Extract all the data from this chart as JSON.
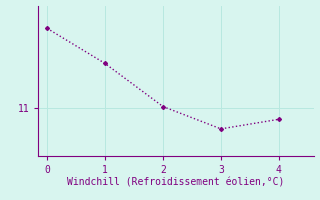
{
  "x": [
    0,
    1,
    2,
    3,
    4
  ],
  "y": [
    13.5,
    12.4,
    11.05,
    10.35,
    10.65
  ],
  "line_color": "#800080",
  "marker": "D",
  "marker_size": 2,
  "linestyle": "dotted",
  "background_color": "#d8f5ef",
  "xlabel": "Windchill (Refroidissement éolien,°C)",
  "xlabel_color": "#800080",
  "ytick_labels": [
    "11"
  ],
  "ytick_values": [
    11
  ],
  "xtick_values": [
    0,
    1,
    2,
    3,
    4
  ],
  "xlim": [
    -0.15,
    4.6
  ],
  "ylim": [
    9.5,
    14.2
  ],
  "grid_color": "#b8e8e0",
  "tick_color": "#800080",
  "spine_color": "#800080",
  "font_size": 7,
  "xlabel_fontsize": 7,
  "linewidth": 1.0
}
